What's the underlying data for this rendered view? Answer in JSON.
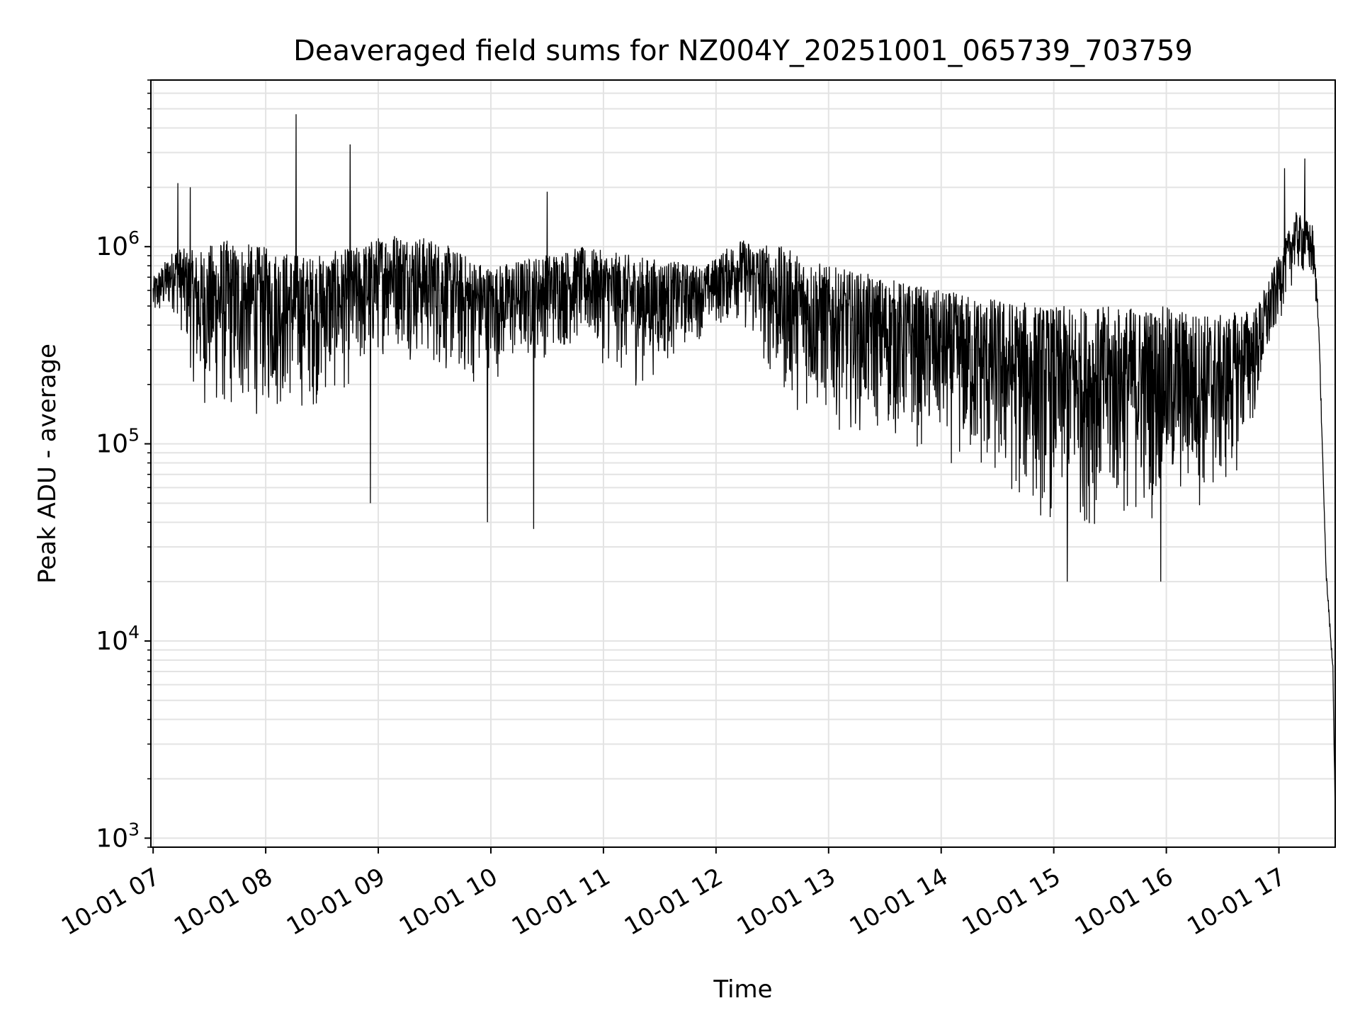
{
  "chart_data": {
    "type": "line",
    "title": "Deaveraged field sums for NZ004Y_20251001_065739_703759",
    "xlabel": "Time",
    "ylabel": "Peak ADU - average",
    "y_scale": "log",
    "ylim": [
      900,
      7000000
    ],
    "xlim_hours": [
      6.98,
      17.5
    ],
    "grid": true,
    "x_tick_hours": [
      7,
      8,
      9,
      10,
      11,
      12,
      13,
      14,
      15,
      16,
      17
    ],
    "x_tick_labels": [
      "10-01 07",
      "10-01 08",
      "10-01 09",
      "10-01 10",
      "10-01 11",
      "10-01 12",
      "10-01 13",
      "10-01 14",
      "10-01 15",
      "10-01 16",
      "10-01 17"
    ],
    "y_ticks": [
      {
        "value": 1000,
        "base": "10",
        "exp": "3"
      },
      {
        "value": 10000,
        "base": "10",
        "exp": "4"
      },
      {
        "value": 100000,
        "base": "10",
        "exp": "5"
      },
      {
        "value": 1000000,
        "base": "10",
        "exp": "6"
      }
    ],
    "series": [
      {
        "name": "Peak ADU - average",
        "color": "#000000",
        "envelope_description": "approximate typical level (upper/lower band) vs time in hours",
        "envelope": [
          [
            7.0,
            700000,
            380000
          ],
          [
            7.2,
            1000000,
            450000
          ],
          [
            7.4,
            950000,
            150000
          ],
          [
            7.6,
            1100000,
            120000
          ],
          [
            8.0,
            1000000,
            130000
          ],
          [
            8.4,
            900000,
            140000
          ],
          [
            8.8,
            1000000,
            180000
          ],
          [
            9.1,
            1200000,
            300000
          ],
          [
            9.5,
            1100000,
            220000
          ],
          [
            9.8,
            900000,
            180000
          ],
          [
            10.0,
            800000,
            200000
          ],
          [
            10.4,
            900000,
            250000
          ],
          [
            10.8,
            1000000,
            300000
          ],
          [
            11.3,
            900000,
            180000
          ],
          [
            11.9,
            800000,
            350000
          ],
          [
            12.2,
            1100000,
            400000
          ],
          [
            12.6,
            1000000,
            150000
          ],
          [
            13.0,
            800000,
            120000
          ],
          [
            13.5,
            700000,
            100000
          ],
          [
            14.0,
            600000,
            80000
          ],
          [
            14.5,
            550000,
            50000
          ],
          [
            15.0,
            500000,
            35000
          ],
          [
            15.5,
            500000,
            35000
          ],
          [
            16.0,
            500000,
            40000
          ],
          [
            16.5,
            450000,
            45000
          ],
          [
            16.8,
            500000,
            120000
          ],
          [
            17.0,
            900000,
            400000
          ],
          [
            17.15,
            1500000,
            700000
          ],
          [
            17.3,
            1300000,
            600000
          ],
          [
            17.35,
            500000,
            400000
          ],
          [
            17.42,
            25000,
            18000
          ],
          [
            17.48,
            9000,
            5000
          ],
          [
            17.5,
            1500,
            1200
          ]
        ],
        "spikes": [
          {
            "hour": 8.27,
            "value": 4700000
          },
          {
            "hour": 8.75,
            "value": 3300000
          },
          {
            "hour": 7.22,
            "value": 2100000
          },
          {
            "hour": 7.33,
            "value": 2000000
          },
          {
            "hour": 10.5,
            "value": 1900000
          },
          {
            "hour": 17.23,
            "value": 2800000
          },
          {
            "hour": 17.05,
            "value": 2500000
          },
          {
            "hour": 8.93,
            "value": 50000
          },
          {
            "hour": 9.97,
            "value": 40000
          },
          {
            "hour": 10.38,
            "value": 37000
          },
          {
            "hour": 15.12,
            "value": 20000
          },
          {
            "hour": 15.95,
            "value": 20000
          }
        ]
      }
    ]
  }
}
